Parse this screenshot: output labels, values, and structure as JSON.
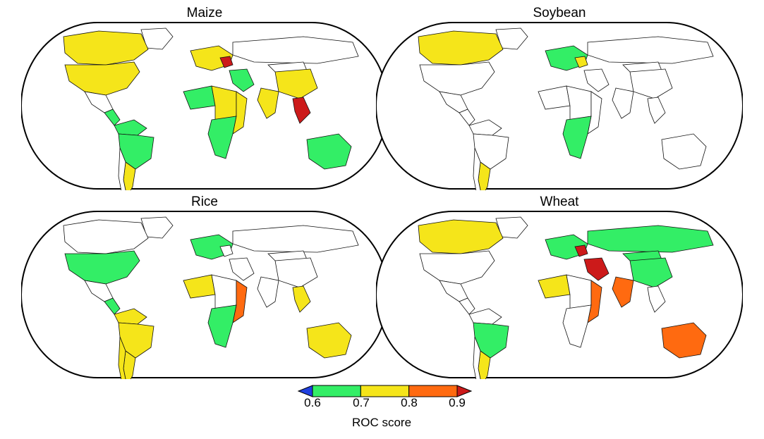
{
  "panels": [
    {
      "title": "Maize",
      "colors": {
        "north_america_canada": "yellow",
        "north_america_usa": "yellow",
        "greenland": "white",
        "mexico": "white",
        "central_america": "green",
        "south_america_north": "green",
        "brazil": "green",
        "argentina": "yellow",
        "chile": "white",
        "europe": "yellow",
        "europe_hot": "red",
        "africa_west": "green",
        "africa_central": "yellow",
        "africa_south": "green",
        "africa_east": "yellow",
        "russia": "white",
        "china": "yellow",
        "india": "yellow",
        "southeast_asia": "red",
        "middle_east": "green",
        "australia": "green",
        "mongolia": "white"
      }
    },
    {
      "title": "Soybean",
      "colors": {
        "north_america_canada": "yellow",
        "north_america_usa": "white",
        "greenland": "white",
        "mexico": "white",
        "central_america": "white",
        "south_america_north": "white",
        "brazil": "white",
        "argentina": "yellow",
        "chile": "white",
        "europe": "green",
        "europe_hot": "yellow",
        "africa_west": "white",
        "africa_central": "white",
        "africa_south": "green",
        "africa_east": "white",
        "russia": "white",
        "china": "white",
        "india": "white",
        "southeast_asia": "white",
        "middle_east": "white",
        "australia": "white",
        "mongolia": "white"
      }
    },
    {
      "title": "Rice",
      "colors": {
        "north_america_canada": "white",
        "north_america_usa": "green",
        "greenland": "white",
        "mexico": "white",
        "central_america": "green",
        "south_america_north": "yellow",
        "brazil": "yellow",
        "argentina": "yellow",
        "chile": "yellow",
        "europe": "green",
        "europe_hot": "white",
        "africa_west": "yellow",
        "africa_central": "white",
        "africa_south": "green",
        "africa_east": "orange",
        "russia": "white",
        "china": "white",
        "india": "white",
        "southeast_asia": "yellow",
        "middle_east": "white",
        "australia": "yellow",
        "mongolia": "white"
      }
    },
    {
      "title": "Wheat",
      "colors": {
        "north_america_canada": "yellow",
        "north_america_usa": "white",
        "greenland": "white",
        "mexico": "white",
        "central_america": "white",
        "south_america_north": "white",
        "brazil": "green",
        "argentina": "yellow",
        "chile": "white",
        "europe": "green",
        "europe_hot": "red",
        "africa_west": "yellow",
        "africa_central": "white",
        "africa_south": "white",
        "africa_east": "orange",
        "russia": "green",
        "china": "green",
        "india": "orange",
        "southeast_asia": "white",
        "middle_east": "red",
        "australia": "orange",
        "mongolia": "green"
      }
    }
  ],
  "palette": {
    "below": "#1f3fe0",
    "green": "#33ee66",
    "yellow": "#f5e51a",
    "orange": "#ff6a10",
    "red": "#cc1a1a",
    "white": "#ffffff",
    "border": "#000000"
  },
  "legend": {
    "title": "ROC score",
    "ticks": [
      "0.6",
      "0.7",
      "0.8",
      "0.9"
    ],
    "bins": [
      {
        "from": 0.6,
        "to": 0.7,
        "color_key": "green"
      },
      {
        "from": 0.7,
        "to": 0.8,
        "color_key": "yellow"
      },
      {
        "from": 0.8,
        "to": 0.9,
        "color_key": "orange"
      }
    ],
    "extend_low_color_key": "below",
    "extend_high_color_key": "red"
  }
}
